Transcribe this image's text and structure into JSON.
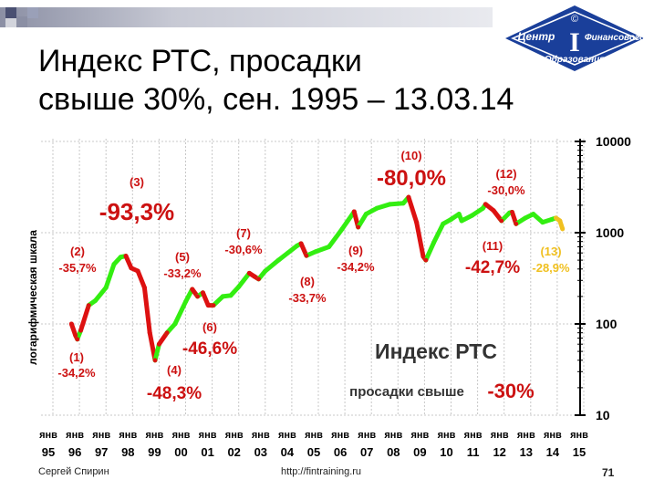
{
  "slide": {
    "title_line1": "Индекс РТС, просадки",
    "title_line2": "свыше 30%, сен. 1995 – 13.03.14",
    "logo": {
      "line1": "Центр",
      "line2": "Финансового",
      "line3": "Образования",
      "mark": "©",
      "letter": "I"
    },
    "footer": {
      "author": "Сергей Спирин",
      "url": "http://fintraining.ru",
      "slide_number": "71"
    }
  },
  "chart_data": {
    "type": "line",
    "title": "Индекс РТС",
    "subtitle_text": "просадки свыше",
    "subtitle_value": "-30%",
    "ylabel": "логарифмическая шкала",
    "yscale": "log",
    "ylim": [
      10,
      10000
    ],
    "yticks": [
      "10",
      "100",
      "1000",
      "10000"
    ],
    "xticks": [
      {
        "month": "янв",
        "year": "95"
      },
      {
        "month": "янв",
        "year": "96"
      },
      {
        "month": "янв",
        "year": "97"
      },
      {
        "month": "янв",
        "year": "98"
      },
      {
        "month": "янв",
        "year": "99"
      },
      {
        "month": "янв",
        "year": "00"
      },
      {
        "month": "янв",
        "year": "01"
      },
      {
        "month": "янв",
        "year": "02"
      },
      {
        "month": "янв",
        "year": "03"
      },
      {
        "month": "янв",
        "year": "04"
      },
      {
        "month": "янв",
        "year": "05"
      },
      {
        "month": "янв",
        "year": "06"
      },
      {
        "month": "янв",
        "year": "07"
      },
      {
        "month": "янв",
        "year": "08"
      },
      {
        "month": "янв",
        "year": "09"
      },
      {
        "month": "янв",
        "year": "10"
      },
      {
        "month": "янв",
        "year": "11"
      },
      {
        "month": "янв",
        "year": "12"
      },
      {
        "month": "янв",
        "year": "13"
      },
      {
        "month": "янв",
        "year": "14"
      },
      {
        "month": "янв",
        "year": "15"
      }
    ],
    "grid": true,
    "colors": {
      "growth": "#33ee11",
      "drawdown": "#dd1111",
      "current_drawdown": "#f0c020",
      "label": "#cc1111"
    },
    "series": [
      {
        "x": 1995.7,
        "y": 100
      },
      {
        "x": 1995.85,
        "y": 75
      },
      {
        "x": 1995.92,
        "y": 68
      },
      {
        "x": 1996.05,
        "y": 85
      },
      {
        "x": 1996.35,
        "y": 160
      },
      {
        "x": 1996.6,
        "y": 180
      },
      {
        "x": 1997.0,
        "y": 250
      },
      {
        "x": 1997.3,
        "y": 450
      },
      {
        "x": 1997.55,
        "y": 540
      },
      {
        "x": 1997.75,
        "y": 555
      },
      {
        "x": 1997.95,
        "y": 410
      },
      {
        "x": 1998.2,
        "y": 380
      },
      {
        "x": 1998.45,
        "y": 250
      },
      {
        "x": 1998.65,
        "y": 80
      },
      {
        "x": 1998.85,
        "y": 40
      },
      {
        "x": 1999.0,
        "y": 60
      },
      {
        "x": 1999.3,
        "y": 80
      },
      {
        "x": 1999.6,
        "y": 100
      },
      {
        "x": 2000.0,
        "y": 175
      },
      {
        "x": 2000.25,
        "y": 240
      },
      {
        "x": 2000.45,
        "y": 200
      },
      {
        "x": 2000.65,
        "y": 220
      },
      {
        "x": 2000.85,
        "y": 160
      },
      {
        "x": 2001.05,
        "y": 160
      },
      {
        "x": 2001.4,
        "y": 200
      },
      {
        "x": 2001.7,
        "y": 205
      },
      {
        "x": 2002.0,
        "y": 255
      },
      {
        "x": 2002.4,
        "y": 360
      },
      {
        "x": 2002.6,
        "y": 330
      },
      {
        "x": 2002.75,
        "y": 310
      },
      {
        "x": 2003.0,
        "y": 380
      },
      {
        "x": 2003.5,
        "y": 500
      },
      {
        "x": 2003.85,
        "y": 600
      },
      {
        "x": 2004.2,
        "y": 720
      },
      {
        "x": 2004.35,
        "y": 760
      },
      {
        "x": 2004.55,
        "y": 560
      },
      {
        "x": 2004.9,
        "y": 620
      },
      {
        "x": 2005.4,
        "y": 700
      },
      {
        "x": 2005.9,
        "y": 1100
      },
      {
        "x": 2006.35,
        "y": 1700
      },
      {
        "x": 2006.5,
        "y": 1150
      },
      {
        "x": 2006.8,
        "y": 1600
      },
      {
        "x": 2007.2,
        "y": 1850
      },
      {
        "x": 2007.7,
        "y": 2050
      },
      {
        "x": 2008.2,
        "y": 2100
      },
      {
        "x": 2008.4,
        "y": 2450
      },
      {
        "x": 2008.7,
        "y": 1300
      },
      {
        "x": 2008.95,
        "y": 550
      },
      {
        "x": 2009.05,
        "y": 500
      },
      {
        "x": 2009.35,
        "y": 780
      },
      {
        "x": 2009.7,
        "y": 1250
      },
      {
        "x": 2010.0,
        "y": 1400
      },
      {
        "x": 2010.3,
        "y": 1600
      },
      {
        "x": 2010.4,
        "y": 1350
      },
      {
        "x": 2010.8,
        "y": 1550
      },
      {
        "x": 2011.2,
        "y": 1850
      },
      {
        "x": 2011.3,
        "y": 2050
      },
      {
        "x": 2011.6,
        "y": 1750
      },
      {
        "x": 2011.9,
        "y": 1350
      },
      {
        "x": 2012.2,
        "y": 1650
      },
      {
        "x": 2012.3,
        "y": 1680
      },
      {
        "x": 2012.45,
        "y": 1250
      },
      {
        "x": 2012.8,
        "y": 1450
      },
      {
        "x": 2013.1,
        "y": 1600
      },
      {
        "x": 2013.45,
        "y": 1300
      },
      {
        "x": 2013.8,
        "y": 1400
      },
      {
        "x": 2013.95,
        "y": 1450
      },
      {
        "x": 2014.1,
        "y": 1350
      },
      {
        "x": 2014.2,
        "y": 1100
      }
    ],
    "drawdowns": [
      {
        "id": "(1)",
        "value": "-34,2%",
        "x_start": 1995.7,
        "x_end": 1995.92
      },
      {
        "id": "(2)",
        "value": "-35,7%",
        "x_start": 1996.05,
        "x_end": 1996.35
      },
      {
        "id": "(3)",
        "value": "-93,3%",
        "x_start": 1997.75,
        "x_end": 1998.85
      },
      {
        "id": "(4)",
        "value": "-48,3%",
        "x_start": 1999.0,
        "x_end": 1999.3
      },
      {
        "id": "(5)",
        "value": "-33,2%",
        "x_start": 2000.25,
        "x_end": 2000.45
      },
      {
        "id": "(6)",
        "value": "-46,6%",
        "x_start": 2000.65,
        "x_end": 2001.05
      },
      {
        "id": "(7)",
        "value": "-30,6%",
        "x_start": 2002.4,
        "x_end": 2002.75
      },
      {
        "id": "(8)",
        "value": "-33,7%",
        "x_start": 2004.35,
        "x_end": 2004.55
      },
      {
        "id": "(9)",
        "value": "-34,2%",
        "x_start": 2006.35,
        "x_end": 2006.5
      },
      {
        "id": "(10)",
        "value": "-80,0%",
        "x_start": 2008.4,
        "x_end": 2009.05
      },
      {
        "id": "(11)",
        "value": "-42,7%",
        "x_start": 2011.3,
        "x_end": 2011.9
      },
      {
        "id": "(12)",
        "value": "-30,0%",
        "x_start": 2012.3,
        "x_end": 2012.45
      },
      {
        "id": "(13)",
        "value": "-28,9%",
        "x_start": 2013.95,
        "x_end": 2014.2,
        "current": true
      }
    ]
  }
}
